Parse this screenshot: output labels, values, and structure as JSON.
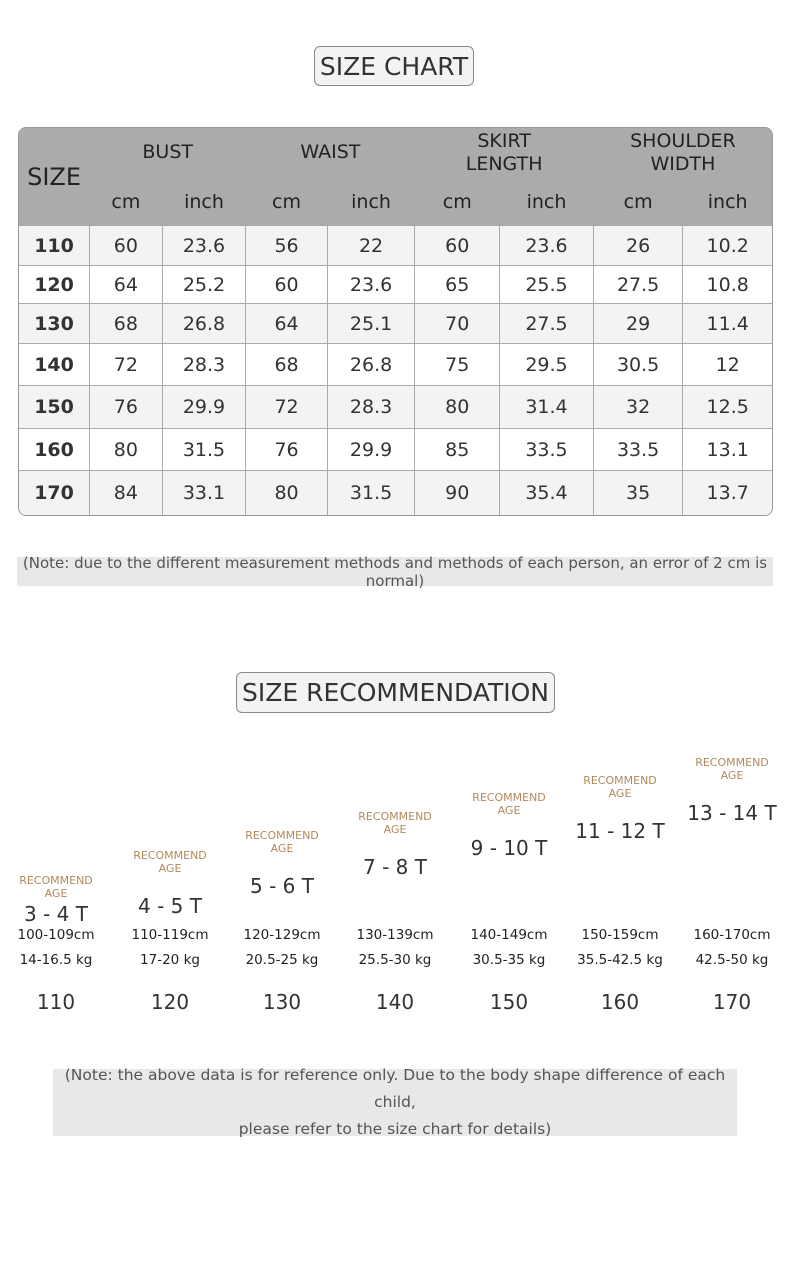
{
  "size_chart": {
    "title": "SIZE CHART",
    "table": {
      "size_header": "SIZE",
      "groups": [
        {
          "name": "BUST",
          "units": [
            "cm",
            "inch"
          ]
        },
        {
          "name": "WAIST",
          "units": [
            "cm",
            "inch"
          ]
        },
        {
          "name": "SKIRT LENGTH",
          "units": [
            "cm",
            "inch"
          ]
        },
        {
          "name": "SHOULDER WIDTH",
          "units": [
            "cm",
            "inch"
          ]
        }
      ],
      "rows": [
        [
          "110",
          "60",
          "23.6",
          "56",
          "22",
          "60",
          "23.6",
          "26",
          "10.2"
        ],
        [
          "120",
          "64",
          "25.2",
          "60",
          "23.6",
          "65",
          "25.5",
          "27.5",
          "10.8"
        ],
        [
          "130",
          "68",
          "26.8",
          "64",
          "25.1",
          "70",
          "27.5",
          "29",
          "11.4"
        ],
        [
          "140",
          "72",
          "28.3",
          "68",
          "26.8",
          "75",
          "29.5",
          "30.5",
          "12"
        ],
        [
          "150",
          "76",
          "29.9",
          "72",
          "28.3",
          "80",
          "31.4",
          "32",
          "12.5"
        ],
        [
          "160",
          "80",
          "31.5",
          "76",
          "29.9",
          "85",
          "33.5",
          "33.5",
          "13.1"
        ],
        [
          "170",
          "84",
          "33.1",
          "80",
          "31.5",
          "90",
          "35.4",
          "35",
          "13.7"
        ]
      ]
    },
    "note": "(Note: due to the different measurement methods and methods of each person, an error of 2 cm is normal)"
  },
  "size_recommendation": {
    "title": "SIZE RECOMMENDATION",
    "items": [
      {
        "label": "RECOMMEND AGE",
        "age": "3 - 4 T",
        "height": "100-109cm",
        "weight": "14-16.5 kg",
        "size": "110"
      },
      {
        "label": "RECOMMEND AGE",
        "age": "4 - 5 T",
        "height": "110-119cm",
        "weight": "17-20 kg",
        "size": "120"
      },
      {
        "label": "RECOMMEND AGE",
        "age": "5 - 6 T",
        "height": "120-129cm",
        "weight": "20.5-25 kg",
        "size": "130"
      },
      {
        "label": "RECOMMEND AGE",
        "age": "7 - 8 T",
        "height": "130-139cm",
        "weight": "25.5-30 kg",
        "size": "140"
      },
      {
        "label": "RECOMMEND AGE",
        "age": "9 - 10 T",
        "height": "140-149cm",
        "weight": "30.5-35 kg",
        "size": "150"
      },
      {
        "label": "RECOMMEND AGE",
        "age": "11 - 12 T",
        "height": "150-159cm",
        "weight": "35.5-42.5 kg",
        "size": "160"
      },
      {
        "label": "RECOMMEND AGE",
        "age": "13 - 14 T",
        "height": "160-170cm",
        "weight": "42.5-50 kg",
        "size": "170"
      }
    ],
    "note": [
      "(Note: the above data is for reference only. Due to the body shape difference of each child,",
      "please refer to the size chart for details)"
    ]
  }
}
